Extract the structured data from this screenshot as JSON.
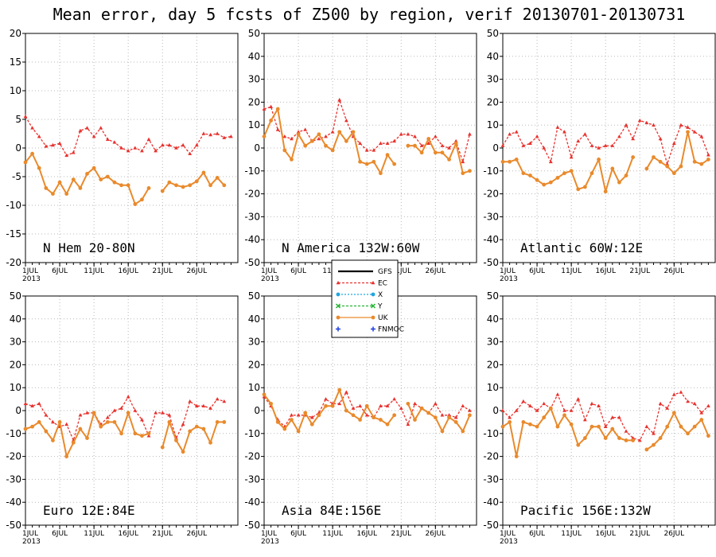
{
  "title": "Mean error, day 5 fcsts of Z500 by region, verif 20130701-20130731",
  "x_tick_labels": [
    "1JUL",
    "6JUL",
    "11JUL",
    "16JUL",
    "21JUL",
    "26JUL"
  ],
  "x_year_label": "2013",
  "legend": [
    {
      "name": "GFS",
      "color": "#000000",
      "dash": "",
      "marker": "none"
    },
    {
      "name": "EC",
      "color": "#e8322e",
      "dash": "3,2",
      "marker": "triangle"
    },
    {
      "name": "X",
      "color": "#1fa6e0",
      "dash": "2,2",
      "marker": "circle"
    },
    {
      "name": "Y",
      "color": "#27b536",
      "dash": "3,2",
      "marker": "x"
    },
    {
      "name": "UK",
      "color": "#e98a2c",
      "dash": "",
      "marker": "circle"
    },
    {
      "name": "FNMOC",
      "color": "#1f3fe0",
      "dash": "",
      "marker": "plus"
    }
  ],
  "chart_data": [
    {
      "type": "line",
      "title": "N Hem 20-80N",
      "ylim": [
        -20,
        20
      ],
      "yticks": [
        -20,
        -15,
        -10,
        -5,
        0,
        5,
        10,
        15,
        20
      ],
      "x": [
        1,
        2,
        3,
        4,
        5,
        6,
        7,
        8,
        9,
        10,
        11,
        12,
        13,
        14,
        15,
        16,
        17,
        18,
        19,
        20,
        21,
        22,
        23,
        24,
        25,
        26,
        27,
        28,
        29,
        30,
        31
      ],
      "series": [
        {
          "name": "EC",
          "values": [
            5.5,
            3.5,
            2,
            0.3,
            0.5,
            0.8,
            -1.3,
            -0.8,
            3,
            3.5,
            2,
            3.5,
            1.5,
            1,
            0,
            -0.5,
            0,
            -0.5,
            1.5,
            -0.5,
            0.5,
            0.5,
            0,
            0.5,
            -1,
            0.5,
            2.5,
            2.3,
            2.5,
            1.8,
            2
          ]
        },
        {
          "name": "UK",
          "values": [
            -2.5,
            -1,
            -3.5,
            -7,
            -8,
            -6,
            -8,
            -5.5,
            -7,
            -4.5,
            -3.5,
            -5.5,
            -5,
            -6,
            -6.5,
            -6.5,
            -9.8,
            -9,
            -7,
            null,
            -7.5,
            -6,
            -6.5,
            -6.8,
            -6.5,
            -5.8,
            -4.3,
            -6.5,
            -5.2,
            -6.5,
            null
          ]
        }
      ]
    },
    {
      "type": "line",
      "title": "N America 132W:60W",
      "ylim": [
        -50,
        50
      ],
      "yticks": [
        -50,
        -40,
        -30,
        -20,
        -10,
        0,
        10,
        20,
        30,
        40,
        50
      ],
      "x": [
        1,
        2,
        3,
        4,
        5,
        6,
        7,
        8,
        9,
        10,
        11,
        12,
        13,
        14,
        15,
        16,
        17,
        18,
        19,
        20,
        21,
        22,
        23,
        24,
        25,
        26,
        27,
        28,
        29,
        30,
        31
      ],
      "series": [
        {
          "name": "EC",
          "values": [
            17,
            18,
            8,
            5,
            4,
            7,
            8,
            3,
            4,
            5,
            7,
            21,
            12,
            5,
            2,
            -1,
            -1,
            2,
            2,
            3,
            6,
            6,
            5,
            1,
            2,
            5,
            1,
            0,
            3,
            -6,
            6
          ]
        },
        {
          "name": "UK",
          "values": [
            5,
            12,
            17,
            -1,
            -5,
            6,
            1,
            3,
            6,
            1,
            -1,
            7,
            3,
            7,
            -6,
            -7,
            -6,
            -11,
            -3,
            -7,
            null,
            1,
            1,
            -2,
            4,
            -2,
            -2,
            -5,
            2,
            -11,
            -10
          ]
        }
      ]
    },
    {
      "type": "line",
      "title": "Atlantic 60W:12E",
      "ylim": [
        -50,
        50
      ],
      "yticks": [
        -50,
        -40,
        -30,
        -20,
        -10,
        0,
        10,
        20,
        30,
        40,
        50
      ],
      "x": [
        1,
        2,
        3,
        4,
        5,
        6,
        7,
        8,
        9,
        10,
        11,
        12,
        13,
        14,
        15,
        16,
        17,
        18,
        19,
        20,
        21,
        22,
        23,
        24,
        25,
        26,
        27,
        28,
        29,
        30,
        31
      ],
      "series": [
        {
          "name": "EC",
          "values": [
            1,
            6,
            7,
            1,
            2,
            5,
            0,
            -6,
            9,
            7,
            -4,
            3,
            6,
            1,
            0,
            1,
            1,
            5,
            10,
            4,
            12,
            11,
            10,
            4,
            -7,
            2,
            10,
            9,
            7,
            5,
            -3
          ]
        },
        {
          "name": "UK",
          "values": [
            -6,
            -6,
            -5,
            -11,
            -12,
            -14,
            -16,
            -15,
            -13,
            -11,
            -10,
            -18,
            -17,
            -11,
            -5,
            -19,
            -9,
            -15,
            -12,
            -4,
            null,
            -9,
            -4,
            -6,
            -8,
            -11,
            -8,
            7,
            -6,
            -7,
            -5
          ]
        }
      ]
    },
    {
      "type": "line",
      "title": "Euro 12E:84E",
      "ylim": [
        -50,
        50
      ],
      "yticks": [
        -50,
        -40,
        -30,
        -20,
        -10,
        0,
        10,
        20,
        30,
        40,
        50
      ],
      "x": [
        1,
        2,
        3,
        4,
        5,
        6,
        7,
        8,
        9,
        10,
        11,
        12,
        13,
        14,
        15,
        16,
        17,
        18,
        19,
        20,
        21,
        22,
        23,
        24,
        25,
        26,
        27,
        28,
        29,
        30,
        31
      ],
      "series": [
        {
          "name": "EC",
          "values": [
            3,
            2,
            3,
            -2,
            -5,
            -7,
            -6,
            -13,
            -2,
            -1,
            -1,
            -6,
            -3,
            0,
            1,
            6,
            0,
            -4,
            -11,
            -1,
            -1,
            -2,
            -12,
            -6,
            4,
            2,
            2,
            1,
            5,
            4,
            null
          ]
        },
        {
          "name": "UK",
          "values": [
            -8,
            -7,
            -5,
            -9,
            -13,
            -5,
            -20,
            -14,
            -8,
            -12,
            -1,
            -7,
            -5,
            -5,
            -10,
            -1,
            -10,
            -11,
            -10,
            null,
            -16,
            -5,
            -13,
            -18,
            -9,
            -7,
            -8,
            -14,
            -5,
            -5,
            null
          ]
        }
      ]
    },
    {
      "type": "line",
      "title": "Asia 84E:156E",
      "ylim": [
        -50,
        50
      ],
      "yticks": [
        -50,
        -40,
        -30,
        -20,
        -10,
        0,
        10,
        20,
        30,
        40,
        50
      ],
      "x": [
        1,
        2,
        3,
        4,
        5,
        6,
        7,
        8,
        9,
        10,
        11,
        12,
        13,
        14,
        15,
        16,
        17,
        18,
        19,
        20,
        21,
        22,
        23,
        24,
        25,
        26,
        27,
        28,
        29,
        30,
        31
      ],
      "series": [
        {
          "name": "EC",
          "values": [
            6,
            2,
            -4,
            -7,
            -2,
            -2,
            -2,
            -3,
            -1,
            5,
            3,
            3,
            8,
            1,
            2,
            -2,
            -3,
            2,
            2,
            5,
            1,
            -6,
            3,
            1,
            -1,
            3,
            -2,
            -2,
            -3,
            2,
            0
          ]
        },
        {
          "name": "UK",
          "values": [
            7,
            3,
            -5,
            -8,
            -4,
            -9,
            -1,
            -6,
            -2,
            2,
            2,
            9,
            0,
            -2,
            -4,
            2,
            -3,
            -4,
            -6,
            -2,
            null,
            3,
            -4,
            1,
            -1,
            -3,
            -9,
            -3,
            -5,
            -9,
            -2
          ]
        }
      ]
    },
    {
      "type": "line",
      "title": "Pacific 156E:132W",
      "ylim": [
        -50,
        50
      ],
      "yticks": [
        -50,
        -40,
        -30,
        -20,
        -10,
        0,
        10,
        20,
        30,
        40,
        50
      ],
      "x": [
        1,
        2,
        3,
        4,
        5,
        6,
        7,
        8,
        9,
        10,
        11,
        12,
        13,
        14,
        15,
        16,
        17,
        18,
        19,
        20,
        21,
        22,
        23,
        24,
        25,
        26,
        27,
        28,
        29,
        30,
        31
      ],
      "series": [
        {
          "name": "EC",
          "values": [
            0,
            -3,
            0,
            4,
            2,
            0,
            3,
            1,
            7,
            0,
            0,
            5,
            -4,
            3,
            2,
            -7,
            -3,
            -3,
            -9,
            -12,
            -13,
            -7,
            -10,
            3,
            1,
            7,
            8,
            4,
            3,
            -1,
            2
          ]
        },
        {
          "name": "UK",
          "values": [
            -7,
            -5,
            -20,
            -5,
            -6,
            -7,
            -3,
            1,
            -7,
            -2,
            -6,
            -15,
            -12,
            -7,
            -7,
            -12,
            -8,
            -12,
            -13,
            -13,
            null,
            -17,
            -15,
            -12,
            -7,
            -1,
            -7,
            -10,
            -7,
            -4,
            -11
          ]
        }
      ]
    }
  ]
}
